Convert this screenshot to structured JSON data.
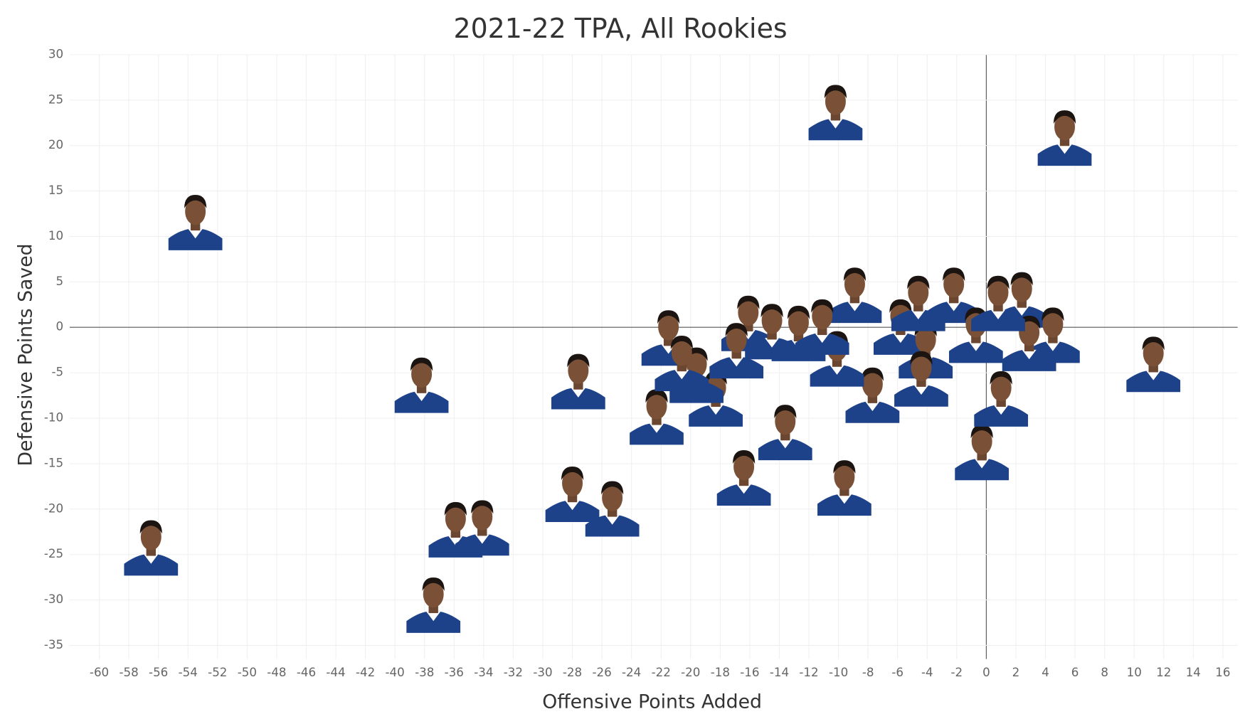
{
  "chart_data": {
    "type": "scatter",
    "title": "2021-22 TPA, All Rookies",
    "x_label": "Offensive Points Added",
    "y_label": "Defensive Points Saved",
    "xlim": [
      -62,
      17
    ],
    "ylim": [
      -36.5,
      30
    ],
    "xticks": [
      -60,
      -58,
      -56,
      -54,
      -52,
      -50,
      -48,
      -46,
      -44,
      -42,
      -40,
      -38,
      -36,
      -34,
      -32,
      -30,
      -28,
      -26,
      -24,
      -22,
      -20,
      -18,
      -16,
      -14,
      -12,
      -10,
      -8,
      -6,
      -4,
      -2,
      0,
      2,
      4,
      6,
      8,
      10,
      12,
      14,
      16
    ],
    "yticks": [
      -35,
      -30,
      -25,
      -20,
      -15,
      -10,
      -5,
      0,
      5,
      10,
      15,
      20,
      25,
      30
    ],
    "grid": true,
    "color": "#1d428a",
    "x": [
      -10.2,
      5.3,
      -53.5,
      11.3,
      -38.2,
      -27.6,
      -21.5,
      -22.3,
      -56.5,
      -37.4,
      -35.9,
      -34.1,
      -28.0,
      -25.3,
      -16.4,
      -9.6,
      -13.6,
      -18.3,
      -7.7,
      -0.3,
      1.0,
      -16.1,
      -8.9,
      -10.1,
      -5.8,
      -2.2,
      2.4,
      4.5,
      -0.7,
      -4.1,
      -16.9,
      -12.7,
      -14.5,
      -4.4,
      2.9,
      -19.6,
      -20.6,
      -11.1,
      -4.6,
      0.8
    ],
    "y": [
      23.8,
      21.0,
      11.7,
      -3.9,
      -6.2,
      -5.8,
      -1.0,
      -9.7,
      -24.1,
      -30.4,
      -22.1,
      -21.9,
      -18.2,
      -19.8,
      -16.4,
      -17.5,
      -11.4,
      -7.7,
      -7.3,
      -13.6,
      -7.7,
      0.6,
      3.7,
      -3.3,
      0.2,
      3.7,
      3.2,
      -0.7,
      -0.7,
      -2.4,
      -2.4,
      -0.5,
      -0.3,
      -5.5,
      -1.6,
      -5.1,
      -3.8,
      0.2,
      2.8,
      2.8
    ]
  }
}
